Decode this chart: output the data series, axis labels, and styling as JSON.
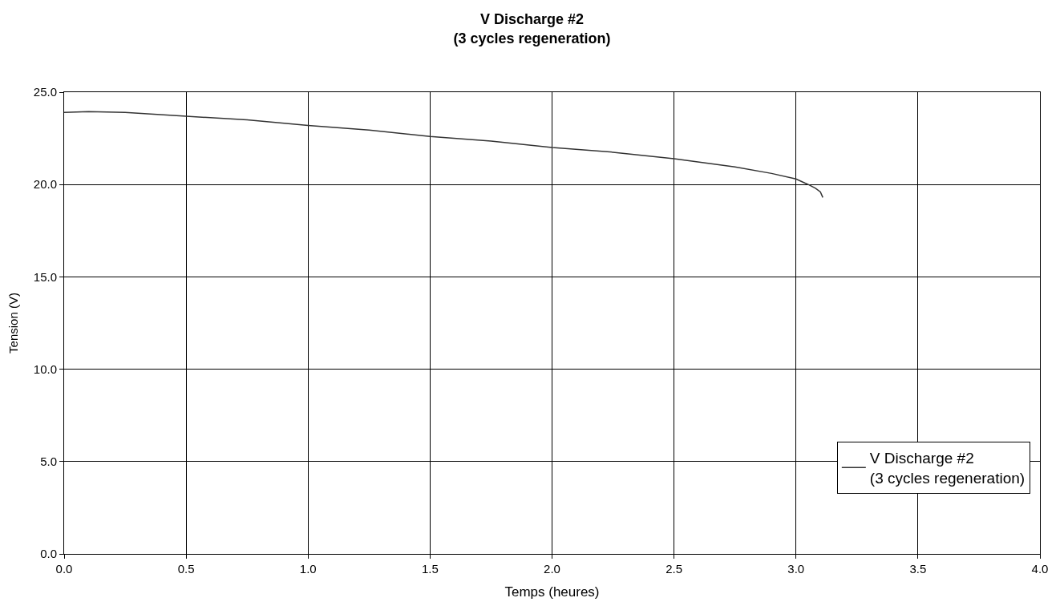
{
  "chart_data": {
    "type": "line",
    "title": "V Discharge #2\n(3 cycles regeneration)",
    "xlabel": "Temps (heures)",
    "ylabel": "Tension (V)",
    "series": [
      {
        "name": "V Discharge #2\n(3 cycles regeneration)",
        "color": "#333333",
        "x": [
          0,
          0.1,
          0.25,
          0.5,
          0.75,
          1.0,
          1.25,
          1.5,
          1.75,
          2.0,
          2.25,
          2.5,
          2.75,
          2.9,
          3.0,
          3.05,
          3.08,
          3.1,
          3.11
        ],
        "values": [
          23.9,
          23.95,
          23.9,
          23.7,
          23.5,
          23.2,
          22.95,
          22.6,
          22.35,
          22.0,
          21.75,
          21.4,
          20.95,
          20.6,
          20.3,
          20.0,
          19.8,
          19.6,
          19.3
        ]
      }
    ],
    "xlim": [
      0,
      4
    ],
    "xticks": [
      {
        "value": 0,
        "label": "0.0"
      },
      {
        "value": 0.5,
        "label": "0.5"
      },
      {
        "value": 1,
        "label": "1.0"
      },
      {
        "value": 1.5,
        "label": "1.5"
      },
      {
        "value": 2,
        "label": "2.0"
      },
      {
        "value": 2.5,
        "label": "2.5"
      },
      {
        "value": 3,
        "label": "3.0"
      },
      {
        "value": 3.5,
        "label": "3.5"
      },
      {
        "value": 4,
        "label": "4.0"
      }
    ],
    "ylim": [
      0,
      25
    ],
    "yticks": [
      {
        "value": 0,
        "label": "0.0"
      },
      {
        "value": 5,
        "label": "5.0"
      },
      {
        "value": 10,
        "label": "10.0"
      },
      {
        "value": 15,
        "label": "15.0"
      },
      {
        "value": 20,
        "label": "20.0"
      },
      {
        "value": 25,
        "label": "25.0"
      }
    ],
    "grid": true,
    "legend": "bottom right",
    "line_style": "solid"
  }
}
